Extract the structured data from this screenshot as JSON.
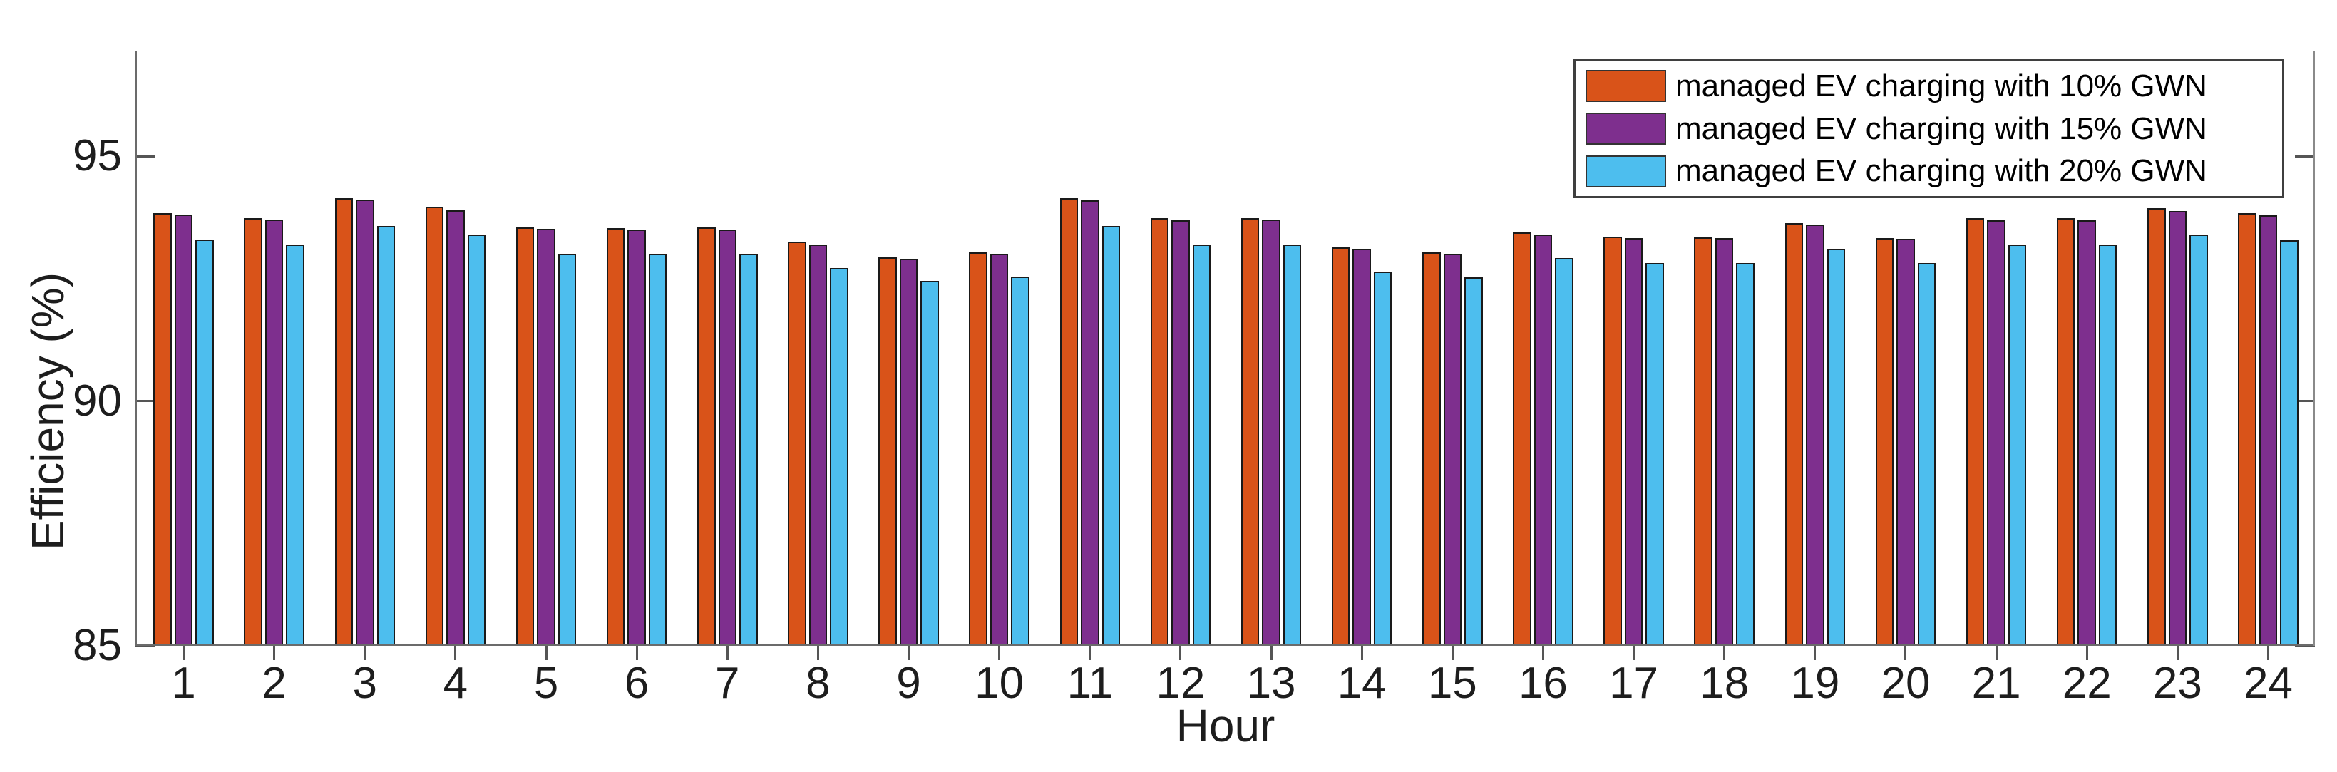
{
  "chart_data": {
    "type": "bar",
    "title": "",
    "xlabel": "Hour",
    "ylabel": "Efficiency (%)",
    "categories": [
      "1",
      "2",
      "3",
      "4",
      "5",
      "6",
      "7",
      "8",
      "9",
      "10",
      "11",
      "12",
      "13",
      "14",
      "15",
      "16",
      "17",
      "18",
      "19",
      "20",
      "21",
      "22",
      "23",
      "24"
    ],
    "series": [
      {
        "name": "managed EV charging with 10% GWN",
        "color": "#D95319",
        "values": [
          93.83,
          93.74,
          94.14,
          93.96,
          93.54,
          93.53,
          93.54,
          93.26,
          92.94,
          93.03,
          94.14,
          93.74,
          93.74,
          93.14,
          93.03,
          93.44,
          93.35,
          93.34,
          93.63,
          93.33,
          93.74,
          93.74,
          93.94,
          93.83
        ]
      },
      {
        "name": "managed EV charging with 15% GWN",
        "color": "#7E2F8E",
        "values": [
          93.8,
          93.7,
          94.11,
          93.89,
          93.51,
          93.5,
          93.5,
          93.19,
          92.9,
          93.01,
          94.1,
          93.69,
          93.7,
          93.11,
          93.01,
          93.4,
          93.32,
          93.32,
          93.6,
          93.31,
          93.69,
          93.69,
          93.88,
          93.79
        ]
      },
      {
        "name": "managed EV charging with 20% GWN",
        "color": "#4DBEEE",
        "values": [
          93.29,
          93.2,
          93.57,
          93.4,
          93.01,
          93.01,
          93.01,
          92.72,
          92.45,
          92.54,
          93.57,
          93.19,
          93.2,
          92.64,
          92.53,
          92.92,
          92.82,
          92.81,
          93.11,
          92.81,
          93.19,
          93.19,
          93.4,
          93.28
        ]
      }
    ],
    "ylim": [
      85,
      97.2
    ],
    "yticks": [
      85,
      90,
      95
    ],
    "grid": false,
    "legend_position": "top-right",
    "bar_edge_color": "#1a1a1a"
  },
  "colors": {
    "background": "#ffffff",
    "axis_line": "#6b6b6b",
    "tick_mark": "#555555",
    "tick_label": "#1d1d1d",
    "legend_border": "#3f3f3f"
  }
}
